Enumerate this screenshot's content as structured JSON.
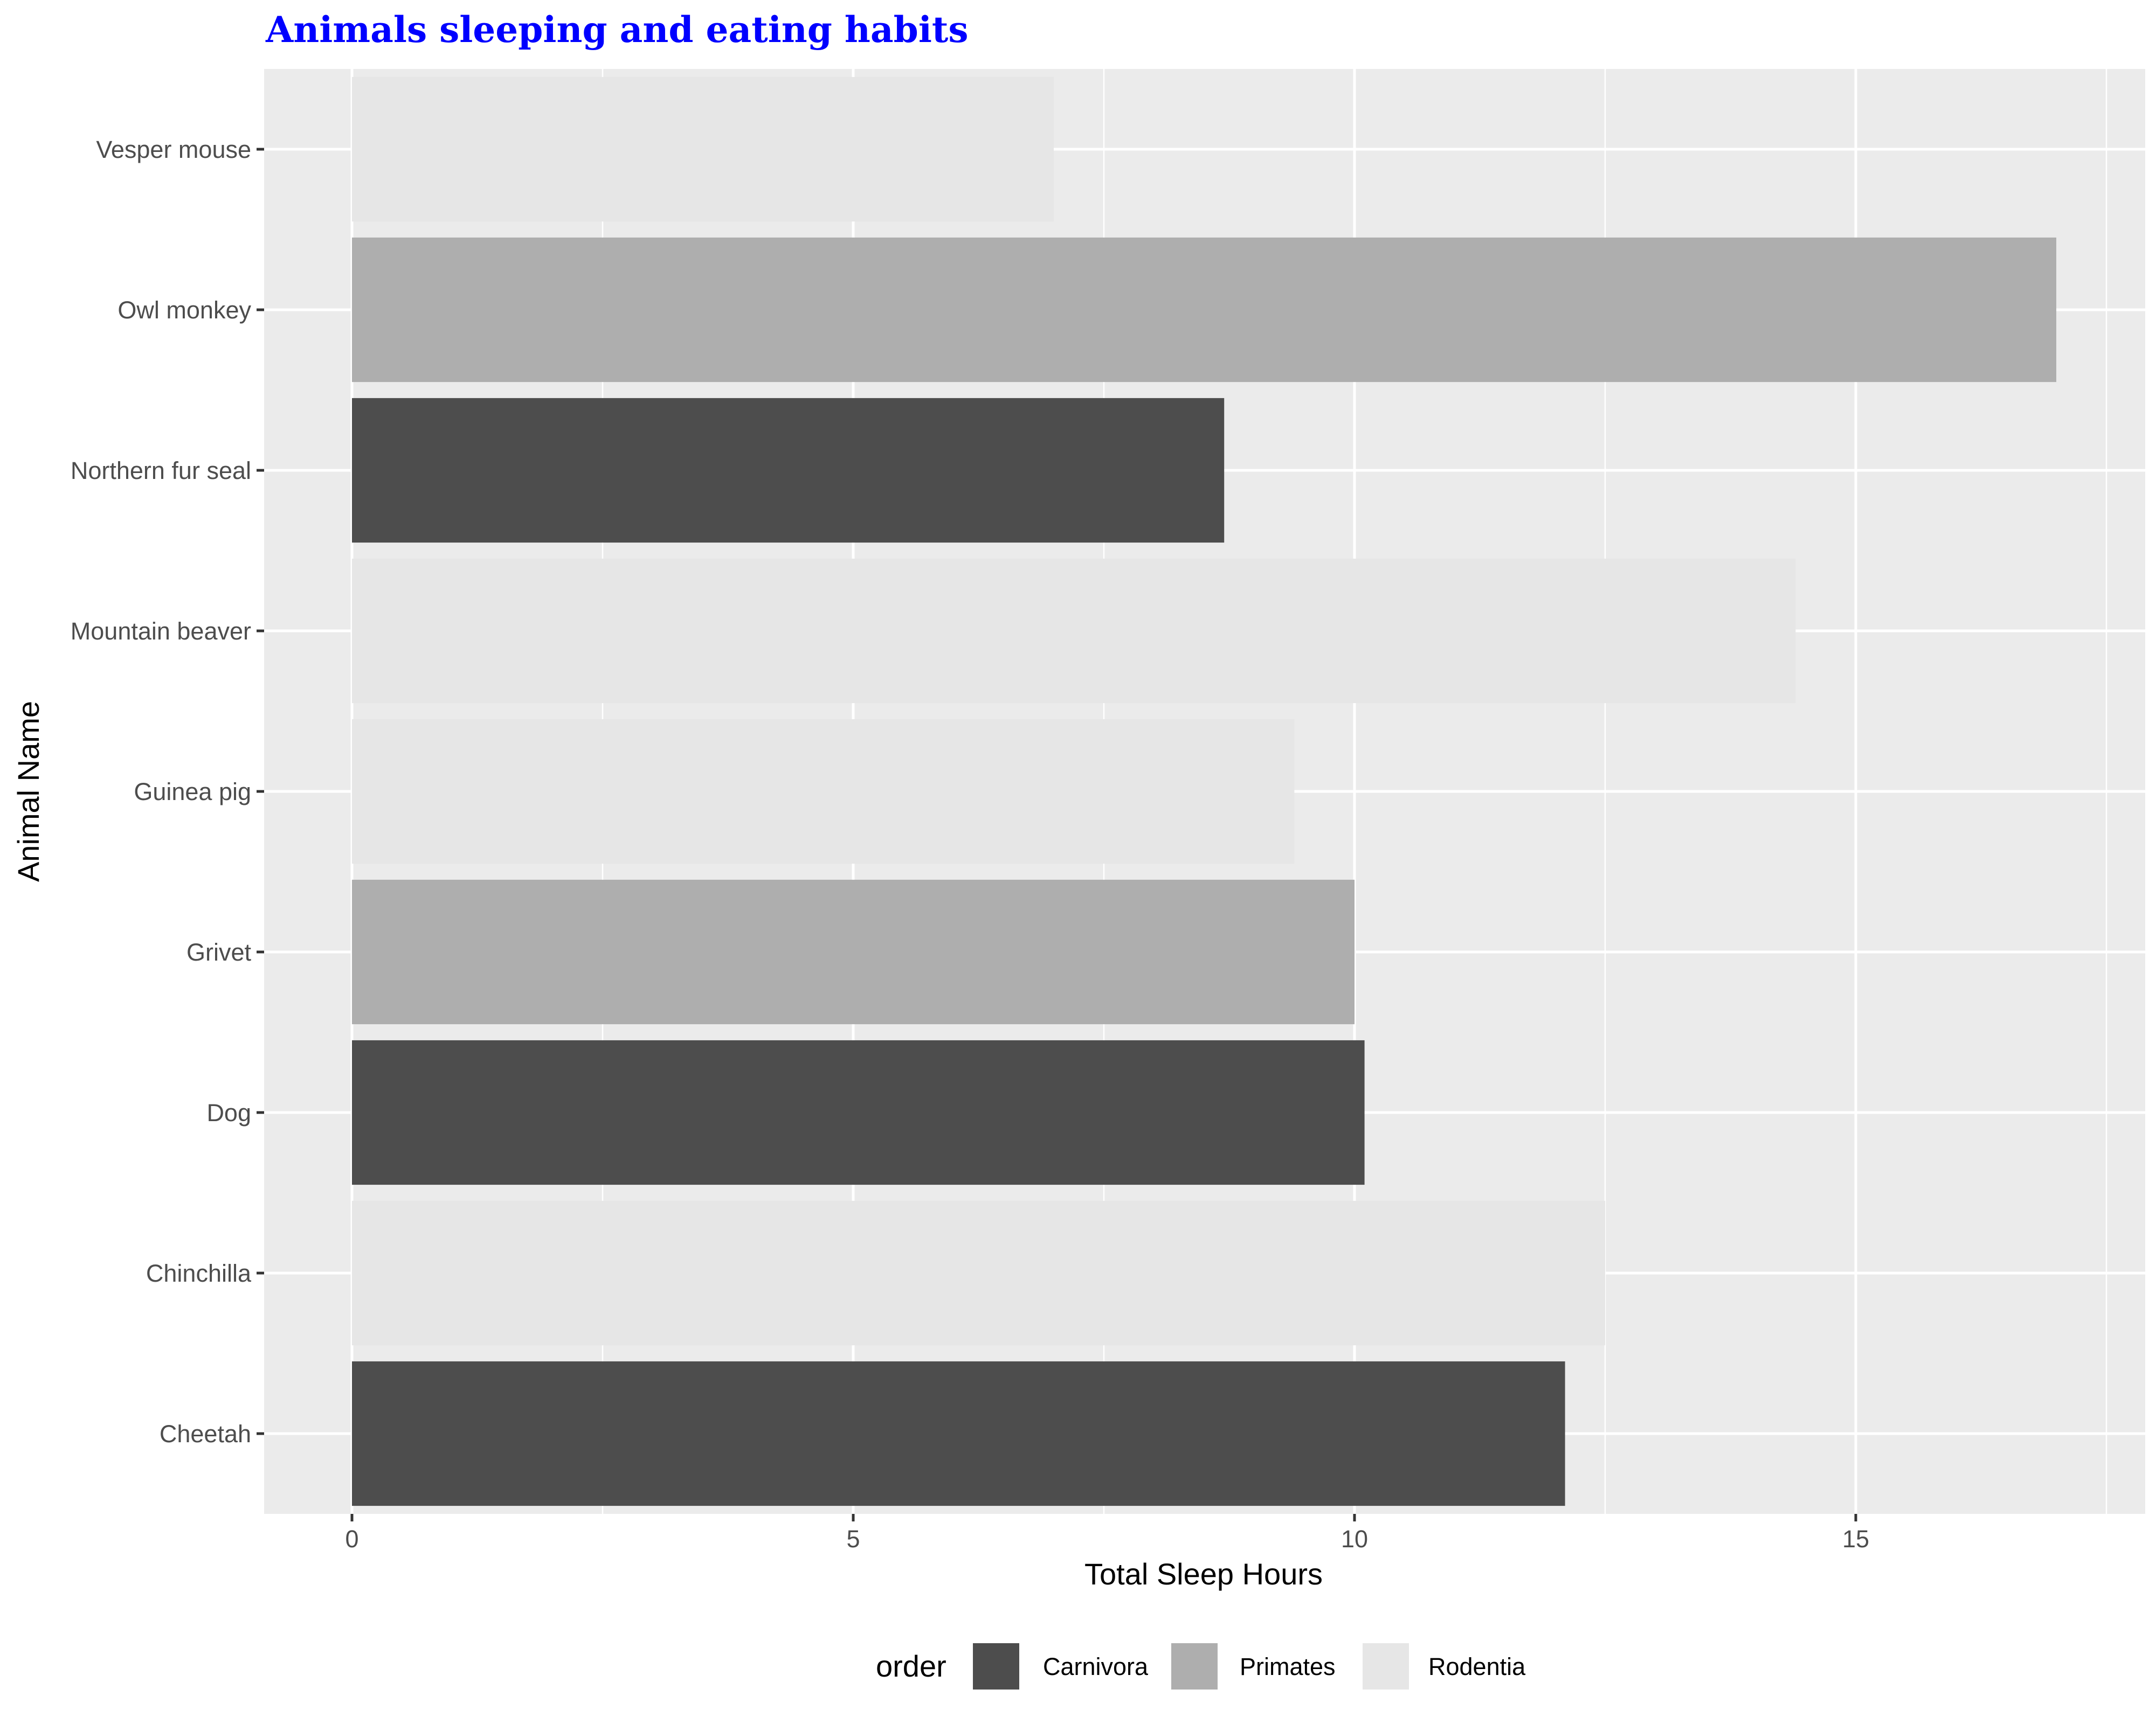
{
  "chart_data": {
    "type": "bar",
    "orientation": "horizontal",
    "title": "Animals sleeping and eating habits",
    "title_color": "#0000ff",
    "xlabel": "Total Sleep Hours",
    "ylabel": "Animal Name",
    "xlim": [
      0,
      17.5
    ],
    "x_ticks": [
      0,
      5,
      10,
      15
    ],
    "grid": true,
    "categories": [
      "Cheetah",
      "Chinchilla",
      "Dog",
      "Grivet",
      "Guinea pig",
      "Mountain beaver",
      "Northern fur seal",
      "Owl monkey",
      "Vesper mouse"
    ],
    "values": [
      12.1,
      12.5,
      10.1,
      10.0,
      9.4,
      14.4,
      8.7,
      17.0,
      7.0
    ],
    "groups": [
      "Carnivora",
      "Rodentia",
      "Carnivora",
      "Primates",
      "Rodentia",
      "Rodentia",
      "Carnivora",
      "Primates",
      "Rodentia"
    ],
    "legend": {
      "title": "order",
      "position": "bottom",
      "entries": [
        {
          "label": "Carnivora",
          "color": "#4d4d4d"
        },
        {
          "label": "Primates",
          "color": "#aeaeae"
        },
        {
          "label": "Rodentia",
          "color": "#e6e6e6"
        }
      ]
    },
    "panel_background": "#ebebeb",
    "grid_color": "#ffffff"
  }
}
